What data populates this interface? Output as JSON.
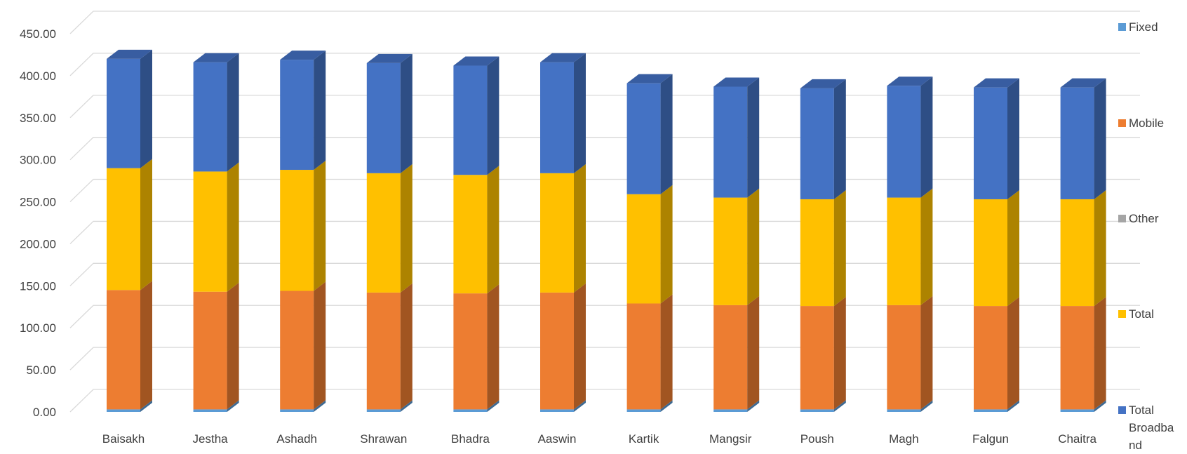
{
  "chart_data": {
    "type": "bar",
    "stacked": true,
    "three_d": true,
    "categories": [
      "Baisakh",
      "Jestha",
      "Ashadh",
      "Shrawan",
      "Bhadra",
      "Aaswin",
      "Kartik",
      "Mangsir",
      "Poush",
      "Magh",
      "Falgun",
      "Chaitra"
    ],
    "series": [
      {
        "name": "Fixed",
        "color": "#5B9BD5",
        "values": [
          3,
          3,
          3,
          3,
          3,
          3,
          3,
          3,
          3,
          3,
          3,
          3
        ]
      },
      {
        "name": "Mobile",
        "color": "#ED7D31",
        "values": [
          142,
          140,
          141,
          139,
          138,
          139,
          126,
          124,
          123,
          124,
          123,
          123
        ]
      },
      {
        "name": "Other",
        "color": "#A5A5A5",
        "values": [
          0,
          0,
          0,
          0,
          0,
          0,
          0,
          0,
          0,
          0,
          0,
          0
        ]
      },
      {
        "name": "Total",
        "color": "#FFC000",
        "values": [
          145,
          143,
          144,
          142,
          141,
          142,
          130,
          128,
          127,
          128,
          127,
          127
        ]
      },
      {
        "name": "Total Broadband",
        "color": "#4472C4",
        "values": [
          130,
          130,
          131,
          131,
          130,
          132,
          132,
          132,
          132,
          133,
          133,
          133
        ]
      }
    ],
    "yticks": [
      "0.00",
      "50.00",
      "100.00",
      "150.00",
      "200.00",
      "250.00",
      "300.00",
      "350.00",
      "400.00",
      "450.00"
    ],
    "ylim": [
      0,
      450
    ],
    "grid": true,
    "legend_position": "right",
    "legend_order": [
      "Fixed",
      "Mobile",
      "Other",
      "Total",
      "Total Broadband"
    ],
    "title": "",
    "xlabel": "",
    "ylabel": ""
  }
}
